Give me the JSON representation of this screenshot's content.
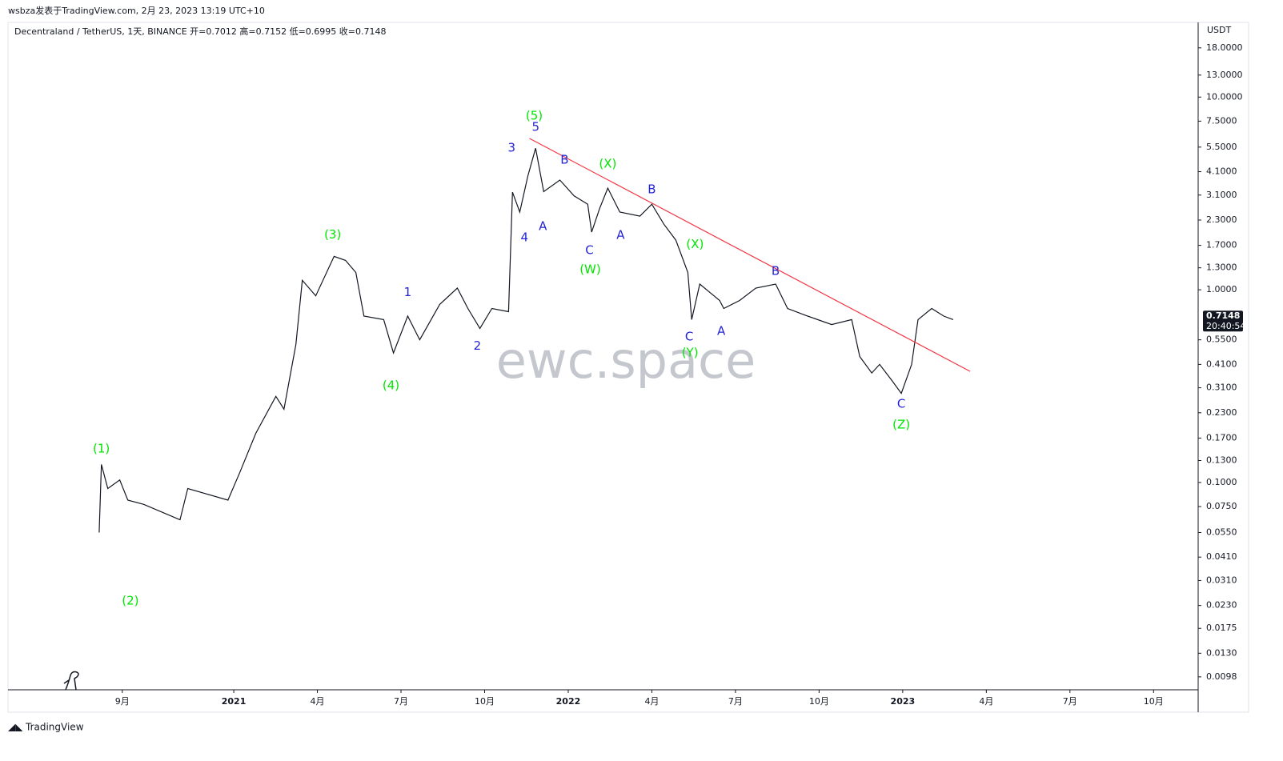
{
  "header": {
    "publish_info": "wsbza发表于TradingView.com, 2月 23, 2023 13:19 UTC+10"
  },
  "footer": {
    "brand": "TradingView"
  },
  "chart_data": {
    "type": "line",
    "title": "Decentraland / TetherUS, 1天, BINANCE  开=0.7012  高=0.7152  低=0.6995  收=0.7148",
    "y_label": "USDT",
    "watermark": "ewc.space",
    "log_y": true,
    "ylim": [
      0.0084,
      24.4
    ],
    "yticks": [
      {
        "value": 18,
        "label": "18.0000"
      },
      {
        "value": 13,
        "label": "13.0000"
      },
      {
        "value": 10,
        "label": "10.0000"
      },
      {
        "value": 7.5,
        "label": "7.5000"
      },
      {
        "value": 5.5,
        "label": "5.5000"
      },
      {
        "value": 4.1,
        "label": "4.1000"
      },
      {
        "value": 3.1,
        "label": "3.1000"
      },
      {
        "value": 2.3,
        "label": "2.3000"
      },
      {
        "value": 1.7,
        "label": "1.7000"
      },
      {
        "value": 1.3,
        "label": "1.3000"
      },
      {
        "value": 1,
        "label": "1.0000"
      },
      {
        "value": 0.55,
        "label": "0.5500"
      },
      {
        "value": 0.41,
        "label": "0.4100"
      },
      {
        "value": 0.31,
        "label": "0.3100"
      },
      {
        "value": 0.23,
        "label": "0.2300"
      },
      {
        "value": 0.17,
        "label": "0.1700"
      },
      {
        "value": 0.13,
        "label": "0.1300"
      },
      {
        "value": 0.1,
        "label": "0.1000"
      },
      {
        "value": 0.075,
        "label": "0.0750"
      },
      {
        "value": 0.055,
        "label": "0.0550"
      },
      {
        "value": 0.041,
        "label": "0.0410"
      },
      {
        "value": 0.031,
        "label": "0.0310"
      },
      {
        "value": 0.023,
        "label": "0.0230"
      },
      {
        "value": 0.0175,
        "label": "0.0175"
      },
      {
        "value": 0.013,
        "label": "0.0130"
      },
      {
        "value": 0.0098,
        "label": "0.0098"
      }
    ],
    "xlim": [
      -4.1,
      38.6
    ],
    "xticks": [
      {
        "value": 0,
        "label": "9月"
      },
      {
        "value": 4,
        "label": "2021"
      },
      {
        "value": 7,
        "label": "4月"
      },
      {
        "value": 10,
        "label": "7月"
      },
      {
        "value": 13,
        "label": "10月"
      },
      {
        "value": 16,
        "label": "2022"
      },
      {
        "value": 19,
        "label": "4月"
      },
      {
        "value": 22,
        "label": "7月"
      },
      {
        "value": 25,
        "label": "10月"
      },
      {
        "value": 28,
        "label": "2023"
      },
      {
        "value": 31,
        "label": "4月"
      },
      {
        "value": 34,
        "label": "7月"
      },
      {
        "value": 37,
        "label": "10月"
      }
    ],
    "series": [
      {
        "color": "#131722",
        "x": [
          -0.83,
          -0.75,
          -0.52,
          -0.09,
          0.2,
          0.77,
          2.07,
          2.35,
          3.79,
          4.22,
          4.79,
          5.51,
          5.8,
          6.23,
          6.46,
          6.94,
          7.6,
          8.01,
          8.38,
          8.67,
          9.38,
          9.73,
          10.24,
          10.67,
          11.39,
          12.02,
          12.4,
          12.83,
          13.26,
          13.86,
          14.0,
          14.26,
          14.55,
          14.83,
          15.12,
          15.7,
          16.21,
          16.7,
          16.84,
          17.13,
          17.42,
          17.85,
          18.57,
          19.0,
          19.43,
          19.86,
          20.29,
          20.43,
          20.72,
          21.43,
          21.58,
          22.15,
          22.73,
          23.44,
          23.87,
          24.59,
          25.45,
          26.17,
          26.46,
          26.89,
          27.17,
          27.6,
          27.95,
          28.32,
          28.55,
          29.04,
          29.47,
          29.81
        ],
        "values": [
          0.055,
          0.124,
          0.093,
          0.103,
          0.081,
          0.077,
          0.064,
          0.093,
          0.081,
          0.113,
          0.18,
          0.28,
          0.24,
          0.52,
          1.12,
          0.93,
          1.49,
          1.42,
          1.23,
          0.73,
          0.7,
          0.47,
          0.73,
          0.55,
          0.84,
          1.02,
          0.8,
          0.63,
          0.8,
          0.77,
          3.21,
          2.53,
          3.89,
          5.43,
          3.23,
          3.71,
          3.07,
          2.78,
          1.99,
          2.65,
          3.37,
          2.53,
          2.41,
          2.78,
          2.19,
          1.81,
          1.23,
          0.7,
          1.07,
          0.88,
          0.8,
          0.88,
          1.02,
          1.07,
          0.8,
          0.73,
          0.66,
          0.7,
          0.45,
          0.37,
          0.41,
          0.34,
          0.29,
          0.41,
          0.7,
          0.8,
          0.73,
          0.7
        ]
      }
    ],
    "trendline": {
      "color": "#f23645",
      "x": [
        14.61,
        30.42
      ],
      "values": [
        6.1,
        0.377
      ]
    },
    "last_price": 0.7148,
    "countdown": "20:40:54",
    "annotations": [
      {
        "text": "(1)",
        "x": -0.75,
        "y": 0.149,
        "color": "#00e600"
      },
      {
        "text": "(2)",
        "x": 0.29,
        "y": 0.0243,
        "color": "#00e600"
      },
      {
        "text": "(3)",
        "x": 7.55,
        "y": 1.93,
        "color": "#00e600"
      },
      {
        "text": "(4)",
        "x": 9.64,
        "y": 0.318,
        "color": "#00e600"
      },
      {
        "text": "(5)",
        "x": 14.78,
        "y": 7.96,
        "color": "#00e600"
      },
      {
        "text": "1",
        "x": 10.24,
        "y": 0.97,
        "color": "#2424d6"
      },
      {
        "text": "2",
        "x": 12.74,
        "y": 0.51,
        "color": "#2424d6"
      },
      {
        "text": "3",
        "x": 13.97,
        "y": 5.43,
        "color": "#2424d6"
      },
      {
        "text": "4",
        "x": 14.43,
        "y": 1.86,
        "color": "#2424d6"
      },
      {
        "text": "5",
        "x": 14.83,
        "y": 6.97,
        "color": "#2424d6"
      },
      {
        "text": "A",
        "x": 15.09,
        "y": 2.13,
        "color": "#2424d6"
      },
      {
        "text": "B",
        "x": 15.87,
        "y": 4.71,
        "color": "#2424d6"
      },
      {
        "text": "C",
        "x": 16.76,
        "y": 1.6,
        "color": "#2424d6"
      },
      {
        "text": "(W)",
        "x": 16.79,
        "y": 1.27,
        "color": "#00e600"
      },
      {
        "text": "(X)",
        "x": 17.42,
        "y": 4.49,
        "color": "#00e600"
      },
      {
        "text": "A",
        "x": 17.88,
        "y": 1.92,
        "color": "#2424d6"
      },
      {
        "text": "B",
        "x": 19.0,
        "y": 3.3,
        "color": "#2424d6"
      },
      {
        "text": "(X)",
        "x": 20.55,
        "y": 1.72,
        "color": "#00e600"
      },
      {
        "text": "C",
        "x": 20.34,
        "y": 0.57,
        "color": "#2424d6"
      },
      {
        "text": "(Y)",
        "x": 20.37,
        "y": 0.47,
        "color": "#00e600"
      },
      {
        "text": "A",
        "x": 21.49,
        "y": 0.61,
        "color": "#2424d6"
      },
      {
        "text": "B",
        "x": 23.44,
        "y": 1.25,
        "color": "#2424d6"
      },
      {
        "text": "C",
        "x": 27.95,
        "y": 0.255,
        "color": "#2424d6"
      },
      {
        "text": "(Z)",
        "x": 27.95,
        "y": 0.199,
        "color": "#00e600"
      }
    ]
  }
}
